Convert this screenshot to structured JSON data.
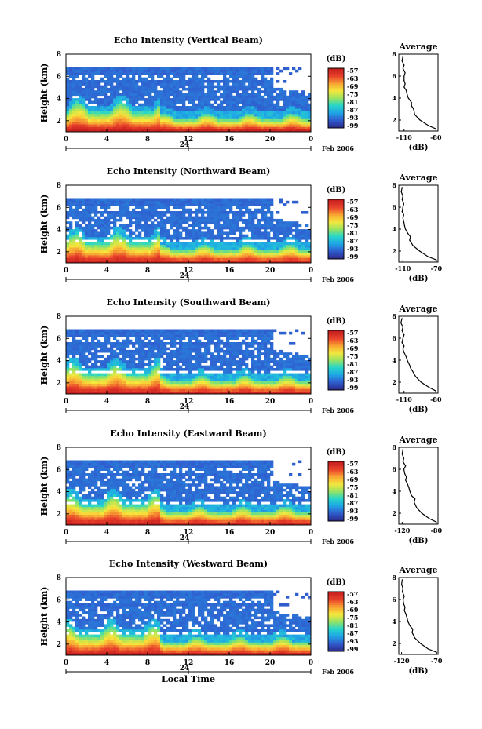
{
  "colors": {
    "colorbar_stops": [
      "#2b2d8f",
      "#2f5fd0",
      "#1fa7e6",
      "#27d7c8",
      "#9be35f",
      "#f6e73c",
      "#f8a233",
      "#e8402a",
      "#c61f1f"
    ],
    "noise_floor": "#3a3d8f",
    "strong_echo": "#e8332a"
  },
  "chart_data": [
    {
      "type": "heatmap",
      "title": "Echo Intensity (Vertical Beam)",
      "ylabel": "Height (km)",
      "yticks": [
        "2",
        "4",
        "6",
        "8"
      ],
      "ylim": [
        1,
        8
      ],
      "xticks": [
        "0",
        "4",
        "8",
        "12",
        "16",
        "20",
        "0"
      ],
      "xlim": [
        0,
        24
      ],
      "date_marker": "24",
      "date_label": "Feb 2006",
      "colorbar": {
        "unit": "(dB)",
        "ticks": [
          "-57",
          "-63",
          "-69",
          "-75",
          "-81",
          "-87",
          "-93",
          "-99"
        ]
      },
      "profile": {
        "title": "Average",
        "xlabel": "(dB)",
        "xticks": [
          "-110",
          "-80"
        ],
        "xlim": [
          -115,
          -78
        ],
        "yticks": [
          "2",
          "4",
          "6",
          "8"
        ],
        "heights": [
          1.2,
          1.5,
          2.0,
          2.5,
          3.0,
          3.3,
          3.6,
          4.0,
          4.3,
          4.7,
          5.0,
          5.3,
          5.6,
          6.0,
          6.3,
          6.7,
          7.0,
          7.4,
          7.8
        ],
        "values": [
          -80,
          -87,
          -95,
          -100,
          -101,
          -103,
          -103,
          -106,
          -107,
          -108,
          -110,
          -109,
          -110,
          -110,
          -109,
          -111,
          -110,
          -112,
          -111
        ]
      }
    },
    {
      "type": "heatmap",
      "title": "Echo Intensity (Northward Beam)",
      "ylabel": "Height (km)",
      "yticks": [
        "2",
        "4",
        "6",
        "8"
      ],
      "ylim": [
        1,
        8
      ],
      "xticks": [
        "0",
        "4",
        "8",
        "12",
        "16",
        "20",
        "0"
      ],
      "xlim": [
        0,
        24
      ],
      "date_marker": "24",
      "date_label": "Feb 2006",
      "colorbar": {
        "unit": "(dB)",
        "ticks": [
          "-57",
          "-63",
          "-69",
          "-75",
          "-81",
          "-87",
          "-93",
          "-99"
        ]
      },
      "profile": {
        "title": "Average",
        "xlabel": "(dB)",
        "xticks": [
          "-110",
          "-70"
        ],
        "xlim": [
          -115,
          -68
        ],
        "yticks": [
          "2",
          "4",
          "6",
          "8"
        ],
        "heights": [
          1.2,
          1.5,
          2.0,
          2.5,
          3.0,
          3.3,
          3.6,
          4.0,
          4.3,
          4.7,
          5.0,
          5.3,
          5.6,
          6.0,
          6.3,
          6.7,
          7.0,
          7.4,
          7.8
        ],
        "values": [
          -70,
          -80,
          -90,
          -98,
          -102,
          -101,
          -104,
          -107,
          -108,
          -109,
          -110,
          -109,
          -111,
          -110,
          -109,
          -111,
          -110,
          -112,
          -111
        ]
      }
    },
    {
      "type": "heatmap",
      "title": "Echo Intensity (Southward Beam)",
      "ylabel": "Height (km)",
      "yticks": [
        "2",
        "4",
        "6",
        "8"
      ],
      "ylim": [
        1,
        8
      ],
      "xticks": [
        "0",
        "4",
        "8",
        "12",
        "16",
        "20",
        "0"
      ],
      "xlim": [
        0,
        24
      ],
      "date_marker": "24",
      "date_label": "Feb 2006",
      "colorbar": {
        "unit": "(dB)",
        "ticks": [
          "-57",
          "-63",
          "-69",
          "-75",
          "-81",
          "-87",
          "-93",
          "-99"
        ]
      },
      "profile": {
        "title": "Average",
        "xlabel": "(dB)",
        "xticks": [
          "-110",
          "-80"
        ],
        "xlim": [
          -115,
          -78
        ],
        "yticks": [
          "2",
          "4",
          "6",
          "8"
        ],
        "heights": [
          1.2,
          1.5,
          2.0,
          2.5,
          3.0,
          3.3,
          3.6,
          4.0,
          4.3,
          4.7,
          5.0,
          5.3,
          5.6,
          6.0,
          6.3,
          6.7,
          7.0,
          7.4,
          7.8
        ],
        "values": [
          -80,
          -86,
          -94,
          -99,
          -102,
          -104,
          -105,
          -107,
          -108,
          -110,
          -111,
          -110,
          -112,
          -111,
          -110,
          -112,
          -111,
          -113,
          -112
        ]
      }
    },
    {
      "type": "heatmap",
      "title": "Echo Intensity (Eastward Beam)",
      "ylabel": "Height (km)",
      "yticks": [
        "2",
        "4",
        "6",
        "8"
      ],
      "ylim": [
        1,
        8
      ],
      "xticks": [
        "0",
        "4",
        "8",
        "12",
        "16",
        "20",
        "0"
      ],
      "xlim": [
        0,
        24
      ],
      "date_marker": "24",
      "date_label": "Feb 2006",
      "colorbar": {
        "unit": "(dB)",
        "ticks": [
          "-57",
          "-63",
          "-69",
          "-75",
          "-81",
          "-87",
          "-93",
          "-99"
        ]
      },
      "profile": {
        "title": "Average",
        "xlabel": "(dB)",
        "xticks": [
          "-120",
          "-80"
        ],
        "xlim": [
          -124,
          -78
        ],
        "yticks": [
          "2",
          "4",
          "6",
          "8"
        ],
        "heights": [
          1.2,
          1.5,
          2.0,
          2.5,
          3.0,
          3.3,
          3.6,
          4.0,
          4.3,
          4.7,
          5.0,
          5.3,
          5.6,
          6.0,
          6.3,
          6.7,
          7.0,
          7.4,
          7.8
        ],
        "values": [
          -80,
          -88,
          -97,
          -103,
          -106,
          -105,
          -109,
          -111,
          -112,
          -114,
          -116,
          -115,
          -117,
          -118,
          -116,
          -119,
          -118,
          -120,
          -119
        ]
      }
    },
    {
      "type": "heatmap",
      "title": "Echo Intensity (Westward Beam)",
      "ylabel": "Height (km)",
      "yticks": [
        "2",
        "4",
        "6",
        "8"
      ],
      "ylim": [
        1,
        8
      ],
      "xticks": [
        "0",
        "4",
        "8",
        "12",
        "16",
        "20",
        "0"
      ],
      "xlim": [
        0,
        24
      ],
      "date_marker": "24",
      "date_label": "Feb 2006",
      "xlabel": "Local Time",
      "colorbar": {
        "unit": "(dB)",
        "ticks": [
          "-57",
          "-63",
          "-69",
          "-75",
          "-81",
          "-87",
          "-93",
          "-99"
        ]
      },
      "profile": {
        "title": "Average",
        "xlabel": "(dB)",
        "xticks": [
          "-120",
          "-70"
        ],
        "xlim": [
          -124,
          -68
        ],
        "yticks": [
          "2",
          "4",
          "6",
          "8"
        ],
        "heights": [
          1.2,
          1.5,
          2.0,
          2.5,
          3.0,
          3.3,
          3.6,
          4.0,
          4.3,
          4.7,
          5.0,
          5.3,
          5.6,
          6.0,
          6.3,
          6.7,
          7.0,
          7.4,
          7.8
        ],
        "values": [
          -70,
          -82,
          -93,
          -101,
          -105,
          -104,
          -108,
          -111,
          -112,
          -114,
          -116,
          -115,
          -117,
          -118,
          -116,
          -119,
          -118,
          -120,
          -119
        ]
      }
    }
  ]
}
